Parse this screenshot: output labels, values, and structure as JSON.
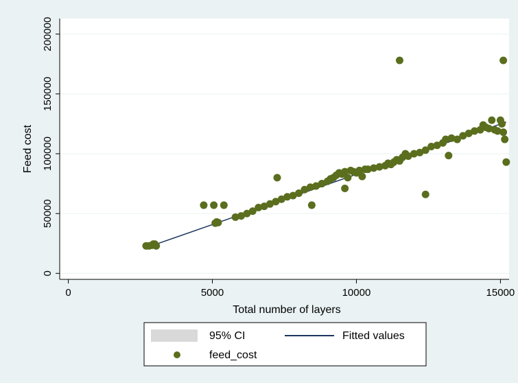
{
  "chart_data": {
    "type": "scatter",
    "xlabel": "Total number of layers",
    "ylabel": "Feed cost",
    "xlim": [
      -300,
      15300
    ],
    "ylim": [
      -5000,
      213000
    ],
    "xticks": [
      0,
      5000,
      10000,
      15000
    ],
    "yticks": [
      0,
      50000,
      100000,
      150000,
      200000
    ],
    "grid": true,
    "legend_position": "bottom",
    "legend": {
      "ci_label": "95% CI",
      "fitted_label": "Fitted values",
      "points_label": "feed_cost"
    },
    "colors": {
      "background": "#eaf2f3",
      "plot_area": "#ffffff",
      "points": "#5a6e1e",
      "fitted_line": "#1b365d",
      "ci_band": "#d9d9d9"
    },
    "fitted_line": {
      "x": [
        3000,
        15200
      ],
      "y": [
        24000,
        126500
      ]
    },
    "series": [
      {
        "name": "feed_cost",
        "points": [
          [
            2700,
            23000
          ],
          [
            2800,
            23000
          ],
          [
            2900,
            23500
          ],
          [
            2950,
            24500
          ],
          [
            3000,
            24500
          ],
          [
            3050,
            23000
          ],
          [
            4700,
            57000
          ],
          [
            5050,
            57000
          ],
          [
            5400,
            57000
          ],
          [
            5100,
            42000
          ],
          [
            5150,
            43000
          ],
          [
            5200,
            42500
          ],
          [
            5800,
            47000
          ],
          [
            6000,
            48000
          ],
          [
            6200,
            50000
          ],
          [
            6400,
            52000
          ],
          [
            6600,
            55000
          ],
          [
            6800,
            56000
          ],
          [
            7000,
            58000
          ],
          [
            7200,
            60000
          ],
          [
            7250,
            80000
          ],
          [
            7400,
            62000
          ],
          [
            7600,
            64000
          ],
          [
            7800,
            65000
          ],
          [
            8000,
            67000
          ],
          [
            8200,
            70000
          ],
          [
            8400,
            72000
          ],
          [
            8450,
            57000
          ],
          [
            8600,
            73000
          ],
          [
            8800,
            75000
          ],
          [
            9000,
            77000
          ],
          [
            9100,
            79000
          ],
          [
            9200,
            80000
          ],
          [
            9300,
            82000
          ],
          [
            9400,
            84000
          ],
          [
            9500,
            83000
          ],
          [
            9600,
            71000
          ],
          [
            9600,
            85000
          ],
          [
            9700,
            80000
          ],
          [
            9800,
            86000
          ],
          [
            9900,
            85000
          ],
          [
            10000,
            84000
          ],
          [
            10100,
            86000
          ],
          [
            10200,
            81000
          ],
          [
            10300,
            87000
          ],
          [
            10400,
            87000
          ],
          [
            10600,
            88000
          ],
          [
            10800,
            89000
          ],
          [
            11000,
            90000
          ],
          [
            11100,
            92000
          ],
          [
            11200,
            91000
          ],
          [
            11300,
            93000
          ],
          [
            11400,
            95000
          ],
          [
            11500,
            94000
          ],
          [
            11500,
            178000
          ],
          [
            11600,
            97000
          ],
          [
            11700,
            100000
          ],
          [
            11800,
            98000
          ],
          [
            12000,
            100000
          ],
          [
            12200,
            101000
          ],
          [
            12400,
            66000
          ],
          [
            12400,
            103000
          ],
          [
            12600,
            106000
          ],
          [
            12800,
            107000
          ],
          [
            13000,
            109000
          ],
          [
            13100,
            112000
          ],
          [
            13200,
            98500
          ],
          [
            13300,
            113000
          ],
          [
            13500,
            112000
          ],
          [
            13700,
            115000
          ],
          [
            13900,
            117000
          ],
          [
            14100,
            119000
          ],
          [
            14300,
            120000
          ],
          [
            14400,
            124000
          ],
          [
            14500,
            122000
          ],
          [
            14600,
            121000
          ],
          [
            14700,
            128000
          ],
          [
            14800,
            120000
          ],
          [
            14900,
            119000
          ],
          [
            15000,
            128000
          ],
          [
            15050,
            125000
          ],
          [
            15100,
            118000
          ],
          [
            15100,
            178000
          ],
          [
            15150,
            112000
          ],
          [
            15200,
            93000
          ]
        ]
      }
    ]
  }
}
